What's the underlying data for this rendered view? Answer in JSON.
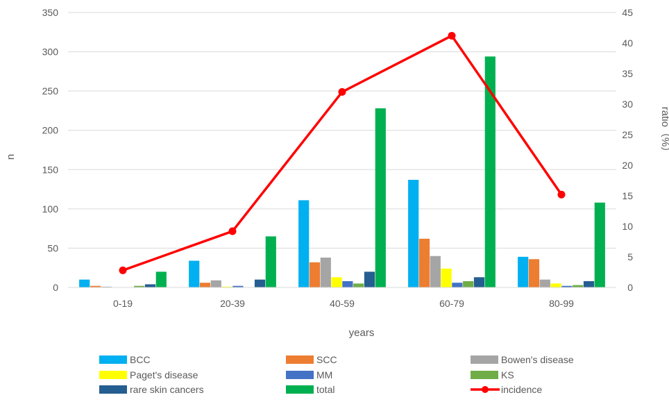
{
  "chart_data": {
    "type": "bar",
    "categories": [
      "0-19",
      "20-39",
      "40-59",
      "60-79",
      "80-99"
    ],
    "xlabel": "years",
    "ylabel_left": "n",
    "ylabel_right": "ratio（%）",
    "ylim_left": [
      0,
      350
    ],
    "yticks_left": [
      "0",
      "50",
      "100",
      "150",
      "200",
      "250",
      "300",
      "350"
    ],
    "ylim_right": [
      0,
      45
    ],
    "yticks_right": [
      "0",
      "5",
      "10",
      "15",
      "20",
      "25",
      "30",
      "35",
      "40",
      "45"
    ],
    "grid": "horizontal",
    "legend_position": "bottom",
    "series": [
      {
        "name": "BCC",
        "kind": "bar",
        "axis": "left",
        "color": "#00B0F0",
        "values": [
          10,
          34,
          111,
          137,
          39
        ]
      },
      {
        "name": "SCC",
        "kind": "bar",
        "axis": "left",
        "color": "#ED7D31",
        "values": [
          2,
          6,
          32,
          62,
          36
        ]
      },
      {
        "name": "Bowen's disease",
        "kind": "bar",
        "axis": "left",
        "color": "#A5A5A5",
        "values": [
          1,
          9,
          38,
          40,
          10
        ]
      },
      {
        "name": "Paget's disease",
        "kind": "bar",
        "axis": "left",
        "color": "#FFFF00",
        "values": [
          0,
          1,
          13,
          24,
          5
        ]
      },
      {
        "name": "MM",
        "kind": "bar",
        "axis": "left",
        "color": "#4472C4",
        "values": [
          0,
          2,
          8,
          6,
          2
        ]
      },
      {
        "name": "KS",
        "kind": "bar",
        "axis": "left",
        "color": "#70AD47",
        "values": [
          2,
          0,
          5,
          8,
          3
        ]
      },
      {
        "name": "rare skin cancers",
        "kind": "bar",
        "axis": "left",
        "color": "#255E91",
        "values": [
          4,
          10,
          20,
          13,
          8
        ]
      },
      {
        "name": "total",
        "kind": "bar",
        "axis": "left",
        "color": "#00B050",
        "values": [
          20,
          65,
          228,
          294,
          108
        ]
      },
      {
        "name": "incidence",
        "kind": "line",
        "axis": "right",
        "color": "#FF0000",
        "values": [
          2.8,
          9.2,
          32.0,
          41.2,
          15.2
        ]
      }
    ]
  }
}
